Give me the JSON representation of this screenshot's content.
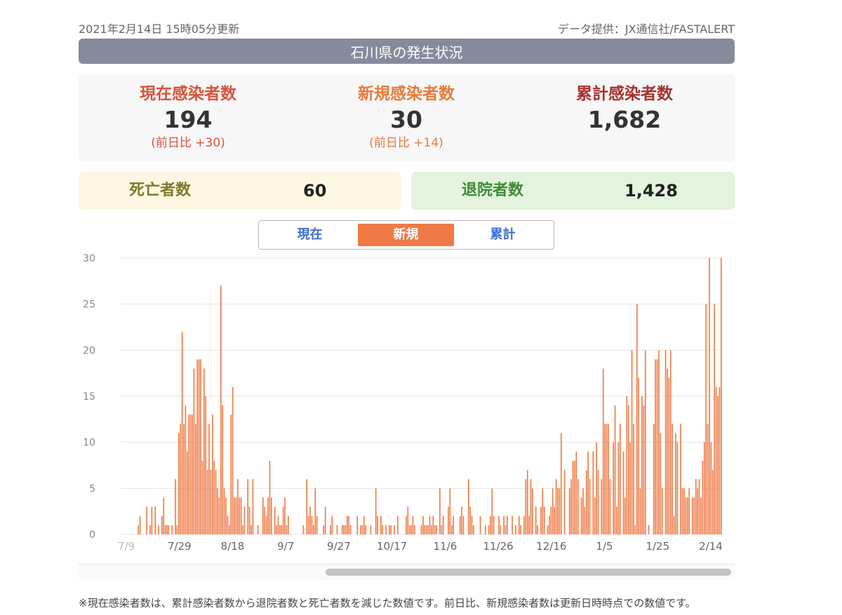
{
  "header": {
    "updated": "2021年2月14日 15時05分更新",
    "source": "データ提供：JX通信社/FASTALERT",
    "title": "石川県の発生状況"
  },
  "stats": {
    "current": {
      "label": "現在感染者数",
      "value": "194",
      "diff": "(前日比 +30)"
    },
    "new": {
      "label": "新規感染者数",
      "value": "30",
      "diff": "(前日比 +14)"
    },
    "total": {
      "label": "累計感染者数",
      "value": "1,682"
    }
  },
  "deaths": {
    "label": "死亡者数",
    "value": "60"
  },
  "recovered": {
    "label": "退院者数",
    "value": "1,428"
  },
  "tabs": [
    {
      "label": "現在",
      "active": false
    },
    {
      "label": "新規",
      "active": true
    },
    {
      "label": "累計",
      "active": false
    }
  ],
  "colors": {
    "bar": "#ef7a45",
    "grid": "#e5e5e5",
    "tick": "#888888",
    "active_tab": "#ef7a45"
  },
  "chart_data": {
    "type": "bar",
    "yticks": [
      "0",
      "5",
      "10",
      "15",
      "20",
      "25",
      "30"
    ],
    "ylim": [
      0,
      30
    ],
    "grid": true,
    "xticks": [
      "7/9",
      "7/29",
      "8/18",
      "9/7",
      "9/27",
      "10/17",
      "11/6",
      "11/26",
      "12/16",
      "1/5",
      "1/25",
      "2/14"
    ],
    "x_start": "7/9",
    "x_end": "2/14",
    "values": [
      0,
      0,
      0,
      0,
      0,
      0,
      0,
      0,
      0,
      0,
      1,
      2,
      0,
      0,
      0,
      3,
      0,
      1,
      3,
      0,
      3,
      0,
      1,
      0,
      2,
      4,
      1,
      1,
      1,
      0,
      1,
      0,
      6,
      1,
      11,
      12,
      22,
      12,
      14,
      9,
      13,
      13,
      13,
      18,
      12,
      19,
      19,
      19,
      8,
      18,
      15,
      7,
      12,
      7,
      13,
      8,
      7,
      5,
      4,
      27,
      14,
      5,
      4,
      2,
      1,
      13,
      16,
      4,
      4,
      6,
      4,
      4,
      1,
      3,
      0,
      6,
      3,
      1,
      6,
      0,
      0,
      1,
      0,
      0,
      4,
      3,
      2,
      4,
      8,
      4,
      0,
      3,
      1,
      2,
      1,
      1,
      3,
      4,
      1,
      2,
      0,
      0,
      0,
      0,
      0,
      0,
      0,
      0,
      1,
      0,
      6,
      2,
      3,
      2,
      1,
      5,
      2,
      0,
      0,
      0,
      1,
      3,
      0,
      0,
      1,
      2,
      0,
      0,
      1,
      0,
      0,
      1,
      1,
      1,
      2,
      2,
      1,
      0,
      0,
      0,
      2,
      0,
      1,
      1,
      2,
      1,
      0,
      0,
      1,
      0,
      0,
      5,
      2,
      0,
      2,
      1,
      0,
      1,
      0,
      1,
      1,
      0,
      1,
      0,
      2,
      0,
      0,
      0,
      0,
      2,
      3,
      1,
      1,
      2,
      1,
      0,
      0,
      0,
      1,
      2,
      1,
      1,
      1,
      2,
      1,
      2,
      1,
      1,
      0,
      5,
      1,
      2,
      0,
      0,
      3,
      5,
      1,
      2,
      0,
      0,
      0,
      2,
      3,
      2,
      0,
      0,
      6,
      3,
      2,
      1,
      0,
      0,
      0,
      2,
      0,
      0,
      1,
      0,
      1,
      2,
      5,
      2,
      0,
      0,
      2,
      1,
      0,
      2,
      1,
      2,
      0,
      0,
      2,
      0,
      1,
      0,
      2,
      1,
      0,
      2,
      6,
      7,
      2,
      6,
      5,
      0,
      3,
      1,
      0,
      3,
      5,
      3,
      0,
      1,
      2,
      3,
      5,
      3,
      6,
      5,
      5,
      11,
      0,
      7,
      0,
      0,
      5,
      6,
      8,
      8,
      9,
      6,
      0,
      4,
      5,
      3,
      7,
      9,
      6,
      0,
      9,
      4,
      10,
      7,
      0,
      6,
      18,
      12,
      12,
      12,
      6,
      0,
      10,
      14,
      3,
      10,
      12,
      0,
      9,
      4,
      15,
      14,
      10,
      20,
      12,
      1,
      25,
      17,
      5,
      15,
      14,
      20,
      0,
      1,
      0,
      0,
      12,
      19,
      19,
      20,
      11,
      5,
      0,
      20,
      18,
      17,
      20,
      12,
      2,
      11,
      10,
      0,
      12,
      5,
      5,
      4,
      4,
      5,
      0,
      4,
      4,
      6,
      5,
      6,
      4,
      8,
      10,
      25,
      12,
      30,
      10,
      7,
      25,
      16,
      15,
      16,
      30
    ]
  },
  "footnote": "※現在感染者数は、累計感染者数から退院者数と死亡者数を減じた数値です。前日比、新規感染者数は更新日時時点での数値です。"
}
